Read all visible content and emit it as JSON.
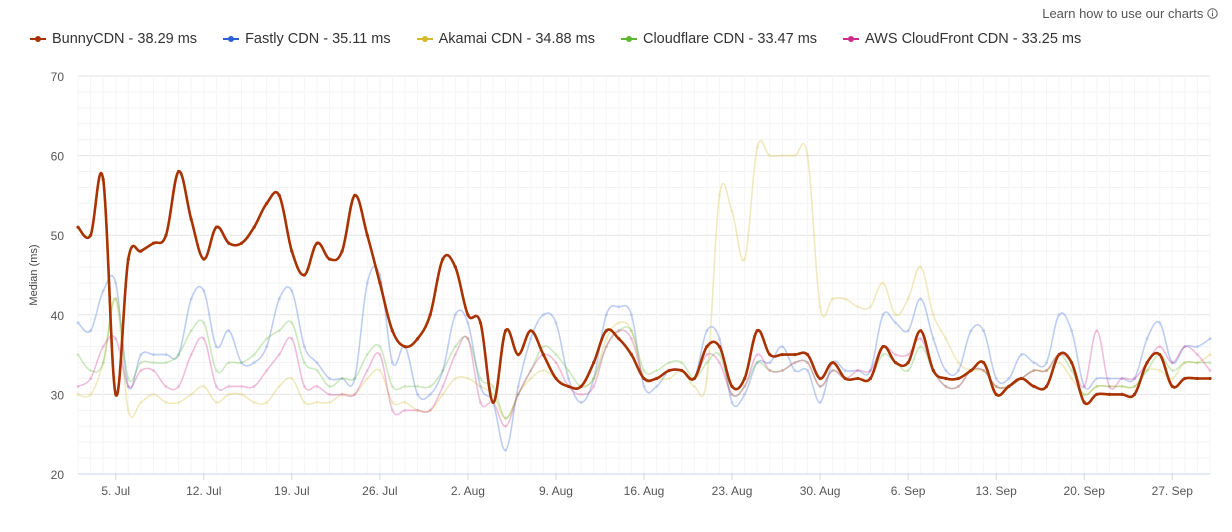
{
  "header": {
    "learn_link": "Learn how to use our charts",
    "learn_icon": "info-icon"
  },
  "chart_data": {
    "type": "line",
    "ylabel": "Median (ms)",
    "ylim": [
      20,
      70
    ],
    "yticks": [
      "20",
      "30",
      "40",
      "50",
      "60",
      "70"
    ],
    "xticks": [
      "5. Jul",
      "12. Jul",
      "19. Jul",
      "26. Jul",
      "2. Aug",
      "9. Aug",
      "16. Aug",
      "23. Aug",
      "30. Aug",
      "6. Sep",
      "13. Sep",
      "20. Sep",
      "27. Sep"
    ],
    "x_start": "2 Jul",
    "x_end": "30 Sep",
    "grid": true,
    "legend_position": "top-left",
    "series": [
      {
        "name": "BunnyCDN - 38.29 ms",
        "color": "#a83200",
        "emphasized": true,
        "values": [
          51,
          50,
          57,
          30,
          47,
          48,
          49,
          50,
          58,
          52,
          47,
          51,
          49,
          49,
          51,
          54,
          55,
          48,
          45,
          49,
          47,
          48,
          55,
          50,
          44,
          38,
          36,
          37,
          40,
          47,
          46,
          40,
          39,
          29,
          38,
          35,
          38,
          35,
          32,
          31,
          31,
          34,
          38,
          37,
          35,
          32,
          32,
          33,
          33,
          32,
          36,
          36,
          31,
          32,
          38,
          35,
          35,
          35,
          35,
          32,
          34,
          32,
          32,
          32,
          36,
          34,
          34,
          38,
          33,
          32,
          32,
          33,
          34,
          30,
          31,
          32,
          31,
          31,
          35,
          34,
          29,
          30,
          30,
          30,
          30,
          34,
          35,
          31,
          32,
          32,
          32
        ]
      },
      {
        "name": "Fastly CDN - 35.11 ms",
        "color": "#2a5fd6",
        "emphasized": false,
        "values": [
          39,
          38,
          43,
          44,
          31,
          35,
          35,
          35,
          35,
          42,
          43,
          36,
          38,
          34,
          34,
          36,
          42,
          43,
          36,
          34,
          32,
          32,
          32,
          44,
          45,
          34,
          36,
          30,
          30,
          33,
          40,
          39,
          31,
          29,
          23,
          31,
          37,
          40,
          39,
          32,
          29,
          32,
          40,
          41,
          40,
          31,
          31,
          33,
          33,
          32,
          38,
          37,
          29,
          30,
          34,
          34,
          36,
          33,
          33,
          29,
          34,
          33,
          33,
          33,
          40,
          39,
          38,
          42,
          37,
          33,
          33,
          38,
          38,
          32,
          32,
          35,
          34,
          34,
          40,
          38,
          31,
          32,
          32,
          32,
          32,
          37,
          39,
          34,
          36,
          36,
          37
        ]
      },
      {
        "name": "Akamai CDN - 34.88 ms",
        "color": "#d4b92a",
        "emphasized": false,
        "values": [
          30,
          30,
          34,
          42,
          28,
          29,
          30,
          29,
          29,
          30,
          31,
          29,
          30,
          30,
          29,
          29,
          31,
          32,
          29,
          29,
          29,
          30,
          30,
          32,
          33,
          29,
          29,
          28,
          28,
          30,
          32,
          32,
          31,
          30,
          27,
          30,
          32,
          33,
          32,
          31,
          31,
          32,
          37,
          39,
          38,
          32,
          32,
          32,
          33,
          31,
          32,
          55,
          53,
          47,
          61,
          60,
          60,
          60,
          60,
          41,
          42,
          42,
          41,
          41,
          44,
          40,
          42,
          46,
          40,
          37,
          34,
          33,
          33,
          31,
          31,
          32,
          33,
          33,
          34,
          32,
          30,
          31,
          31,
          31,
          31,
          33,
          33,
          32,
          34,
          34,
          35
        ]
      },
      {
        "name": "Cloudflare CDN - 33.47 ms",
        "color": "#5cb82e",
        "emphasized": false,
        "values": [
          35,
          33,
          34,
          42,
          32,
          34,
          34,
          34,
          35,
          38,
          39,
          33,
          34,
          34,
          35,
          37,
          38,
          39,
          34,
          33,
          31,
          32,
          32,
          35,
          36,
          31,
          31,
          31,
          31,
          33,
          36,
          37,
          32,
          31,
          27,
          30,
          33,
          36,
          35,
          33,
          31,
          32,
          36,
          38,
          38,
          33,
          33,
          34,
          34,
          32,
          34,
          35,
          30,
          31,
          34,
          33,
          33,
          34,
          34,
          31,
          33,
          32,
          32,
          32,
          35,
          34,
          33,
          36,
          33,
          31,
          31,
          33,
          33,
          31,
          31,
          32,
          33,
          33,
          35,
          33,
          30,
          31,
          31,
          31,
          31,
          33,
          35,
          33,
          34,
          34,
          34
        ]
      },
      {
        "name": "AWS CloudFront CDN - 33.25 ms",
        "color": "#cf2b8b",
        "emphasized": false,
        "values": [
          31,
          32,
          36,
          37,
          31,
          33,
          33,
          31,
          31,
          35,
          37,
          31,
          31,
          31,
          31,
          33,
          35,
          37,
          31,
          31,
          30,
          30,
          30,
          33,
          35,
          28,
          28,
          28,
          28,
          31,
          35,
          37,
          29,
          29,
          26,
          30,
          33,
          35,
          34,
          31,
          30,
          31,
          36,
          38,
          37,
          32,
          32,
          33,
          33,
          32,
          35,
          34,
          30,
          31,
          35,
          33,
          33,
          34,
          34,
          31,
          33,
          32,
          33,
          33,
          36,
          35,
          35,
          37,
          33,
          31,
          31,
          33,
          33,
          31,
          31,
          32,
          33,
          33,
          35,
          34,
          31,
          38,
          31,
          32,
          32,
          34,
          36,
          34,
          36,
          35,
          33
        ]
      }
    ]
  }
}
